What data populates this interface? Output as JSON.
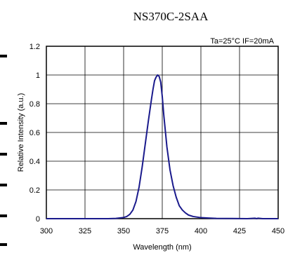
{
  "chart_data": {
    "type": "line",
    "title": "NS370C-2SAA",
    "condition_label": "Ta=25°C IF=20mA",
    "xlabel": "Wavelength (nm)",
    "ylabel": "Relative Intensity (a.u.)",
    "xlim": [
      300,
      450
    ],
    "ylim": [
      0,
      1.2
    ],
    "xticks": [
      "300",
      "325",
      "350",
      "375",
      "400",
      "425",
      "450"
    ],
    "yticks": [
      "0",
      "0.2",
      "0.4",
      "0.6",
      "0.8",
      "1",
      "1.2"
    ],
    "grid": true,
    "series": [
      {
        "color": "#1a1a8c",
        "x": [
          300,
          340,
          345,
          350,
          352,
          354,
          356,
          358,
          360,
          362,
          364,
          366,
          368,
          369,
          370,
          371,
          372,
          373,
          374,
          375,
          376,
          378,
          380,
          382,
          384,
          386,
          388,
          390,
          392,
          395,
          400,
          405,
          410,
          420,
          430,
          435,
          436,
          437,
          440,
          450
        ],
        "y": [
          0,
          0,
          0.002,
          0.008,
          0.015,
          0.03,
          0.06,
          0.12,
          0.22,
          0.36,
          0.52,
          0.68,
          0.83,
          0.9,
          0.96,
          0.985,
          1.0,
          0.99,
          0.95,
          0.85,
          0.72,
          0.5,
          0.34,
          0.23,
          0.15,
          0.09,
          0.06,
          0.04,
          0.025,
          0.015,
          0.007,
          0.004,
          0.002,
          0.001,
          0,
          0.003,
          0,
          0.003,
          0,
          0
        ]
      }
    ]
  }
}
